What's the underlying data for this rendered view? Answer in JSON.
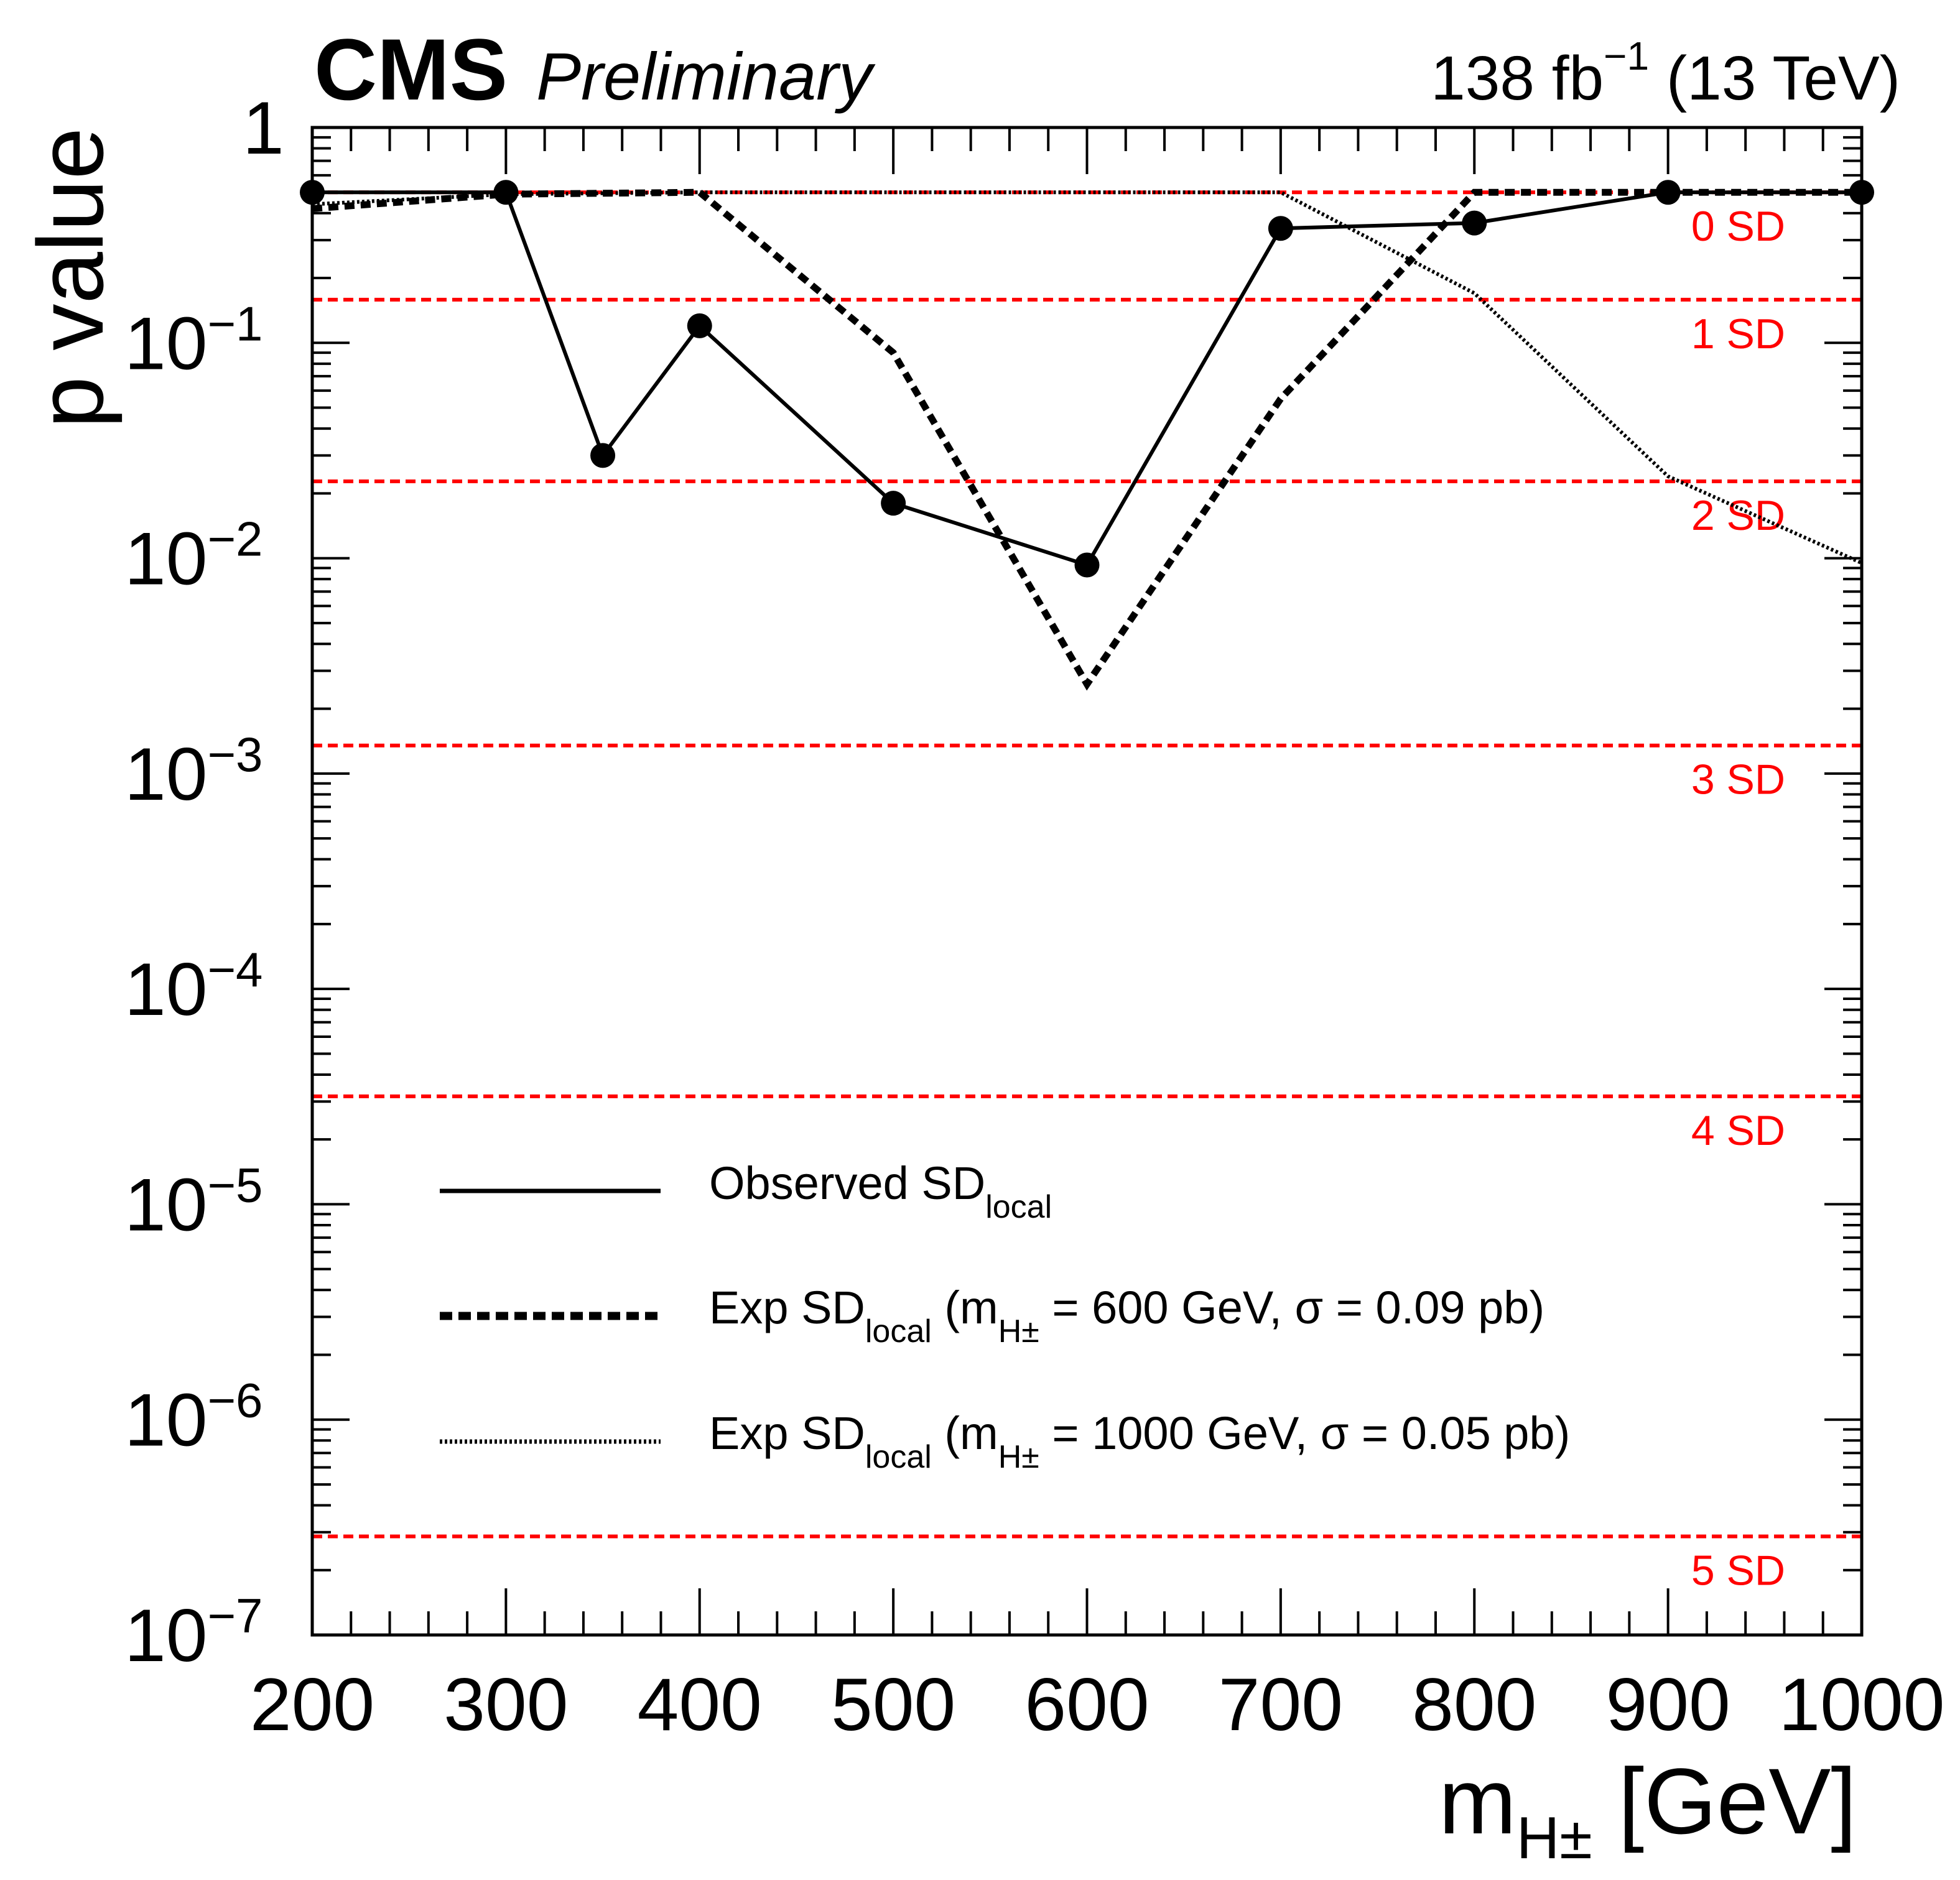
{
  "header": {
    "experiment": "CMS",
    "status": "Preliminary",
    "lumi_value": "138 fb",
    "lumi_exp": "−1",
    "energy": " (13 TeV)"
  },
  "chart_data": {
    "type": "line",
    "yscale": "log",
    "xlim": [
      200,
      1000
    ],
    "ylim": [
      1e-07,
      1
    ],
    "xlabel": {
      "main": "m",
      "sub": "H±",
      "unit": " [GeV]"
    },
    "ylabel": "p value",
    "x_ticks": [
      {
        "value": 200,
        "label": "200"
      },
      {
        "value": 300,
        "label": "300"
      },
      {
        "value": 400,
        "label": "400"
      },
      {
        "value": 500,
        "label": "500"
      },
      {
        "value": 600,
        "label": "600"
      },
      {
        "value": 700,
        "label": "700"
      },
      {
        "value": 800,
        "label": "800"
      },
      {
        "value": 900,
        "label": "900"
      },
      {
        "value": 1000,
        "label": "1000"
      }
    ],
    "y_ticks": [
      {
        "exp": 0,
        "base": "1",
        "sup": ""
      },
      {
        "exp": -1,
        "base": "10",
        "sup": "−1"
      },
      {
        "exp": -2,
        "base": "10",
        "sup": "−2"
      },
      {
        "exp": -3,
        "base": "10",
        "sup": "−3"
      },
      {
        "exp": -4,
        "base": "10",
        "sup": "−4"
      },
      {
        "exp": -5,
        "base": "10",
        "sup": "−5"
      },
      {
        "exp": -6,
        "base": "10",
        "sup": "−6"
      },
      {
        "exp": -7,
        "base": "10",
        "sup": "−7"
      }
    ],
    "sd_lines": [
      {
        "label": "0 SD",
        "p": 0.5
      },
      {
        "label": "1 SD",
        "p": 0.1587
      },
      {
        "label": "2 SD",
        "p": 0.02275
      },
      {
        "label": "3 SD",
        "p": 0.00135
      },
      {
        "label": "4 SD",
        "p": 3.17e-05
      },
      {
        "label": "5 SD",
        "p": 2.87e-07
      }
    ],
    "series": [
      {
        "name": "Observed",
        "style": "solid",
        "markers": true,
        "x": [
          200,
          300,
          350,
          400,
          500,
          600,
          700,
          800,
          900,
          1000
        ],
        "y": [
          0.5,
          0.5,
          0.03,
          0.12,
          0.018,
          0.0093,
          0.34,
          0.36,
          0.5,
          0.5
        ]
      },
      {
        "name": "Exp 600",
        "style": "dashed",
        "markers": false,
        "x": [
          200,
          300,
          400,
          500,
          600,
          700,
          800,
          900,
          1000
        ],
        "y": [
          0.42,
          0.49,
          0.5,
          0.09,
          0.0026,
          0.055,
          0.5,
          0.5,
          0.5
        ]
      },
      {
        "name": "Exp 1000",
        "style": "dotted",
        "markers": false,
        "x": [
          200,
          300,
          400,
          500,
          600,
          700,
          800,
          900,
          1000
        ],
        "y": [
          0.44,
          0.49,
          0.5,
          0.5,
          0.5,
          0.5,
          0.17,
          0.024,
          0.0095
        ]
      }
    ],
    "legend": [
      {
        "style": "solid",
        "pre": "Observed SD",
        "sub": "local",
        "mid": "",
        "msub": "",
        "post": ""
      },
      {
        "style": "dashed",
        "pre": "Exp SD",
        "sub": "local",
        "mid": " (m",
        "msub": "H±",
        "post": " = 600 GeV, σ = 0.09 pb)"
      },
      {
        "style": "dotted",
        "pre": "Exp SD",
        "sub": "local",
        "mid": " (m",
        "msub": "H±",
        "post": " = 1000 GeV, σ = 0.05 pb)"
      }
    ]
  }
}
